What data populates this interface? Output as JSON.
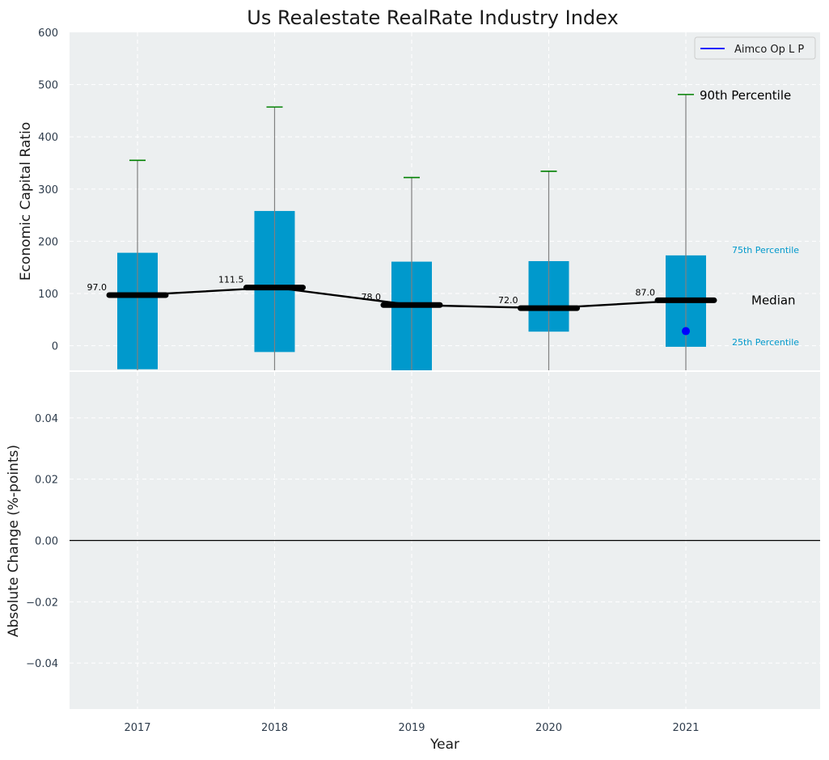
{
  "chart_data": {
    "type": "box",
    "title": "Us Realestate RealRate Industry Index",
    "xlabel": "Year",
    "categories": [
      "2017",
      "2018",
      "2019",
      "2020",
      "2021"
    ],
    "top_panel": {
      "ylabel": "Economic Capital Ratio",
      "ylim": [
        -47,
        600
      ],
      "yticks": [
        0,
        100,
        200,
        300,
        400,
        500,
        600
      ],
      "boxes": [
        {
          "year": "2017",
          "p25": -45,
          "median": 97.0,
          "p75": 178,
          "p90": 355,
          "median_label": "97.0"
        },
        {
          "year": "2018",
          "p25": -12,
          "median": 111.5,
          "p75": 258,
          "p90": 457,
          "median_label": "111.5"
        },
        {
          "year": "2019",
          "p25": -48,
          "median": 78.0,
          "p75": 161,
          "p90": 322,
          "median_label": "78.0"
        },
        {
          "year": "2020",
          "p25": 27,
          "median": 72.0,
          "p75": 162,
          "p90": 334,
          "median_label": "72.0"
        },
        {
          "year": "2021",
          "p25": -2,
          "median": 87.0,
          "p75": 173,
          "p90": 481,
          "median_label": "87.0"
        }
      ],
      "company_series": {
        "name": "Aimco Op L P",
        "points": [
          {
            "year": "2021",
            "value": 28
          }
        ]
      },
      "annotations": {
        "p90": "90th Percentile",
        "p75": "75th Percentile",
        "median": "Median",
        "p25": "25th Percentile"
      },
      "legend": {
        "position": "top-right",
        "entries": [
          "Aimco Op L P"
        ]
      }
    },
    "bottom_panel": {
      "ylabel": "Absolute Change (%-points)",
      "ylim": [
        -0.055,
        0.055
      ],
      "yticks": [
        -0.04,
        -0.02,
        0.0,
        0.02,
        0.04
      ],
      "ytick_labels": [
        "−0.04",
        "−0.02",
        "0.00",
        "0.02",
        "0.04"
      ],
      "series": [
        {
          "name": "Aimco Op L P",
          "values": [
            0,
            0,
            0,
            0,
            0
          ]
        }
      ]
    },
    "grid": true,
    "colors": {
      "box": "#0099cc",
      "median": "#000000",
      "whisker": "#808080",
      "cap": "#008000",
      "company": "#0000ff",
      "background": "#eceff0",
      "grid": "#ffffff",
      "p_label": "#0099cc"
    }
  }
}
